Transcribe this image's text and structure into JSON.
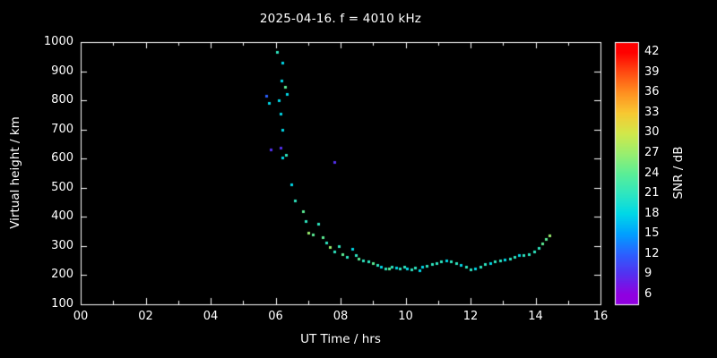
{
  "background": "#000000",
  "foreground": "#ffffff",
  "chart_data": {
    "type": "scatter",
    "title": "2025-04-16. f = 4010 kHz",
    "xlabel": "UT Time / hrs",
    "ylabel": "Virtual height / km",
    "xlim": [
      0,
      16
    ],
    "ylim": [
      100,
      1000
    ],
    "grid": false,
    "legend": "colorbar-right",
    "x_ticks": [
      {
        "v": 0,
        "label": "00"
      },
      {
        "v": 2,
        "label": "02"
      },
      {
        "v": 4,
        "label": "04"
      },
      {
        "v": 6,
        "label": "06"
      },
      {
        "v": 8,
        "label": "08"
      },
      {
        "v": 10,
        "label": "10"
      },
      {
        "v": 12,
        "label": "12"
      },
      {
        "v": 14,
        "label": "14"
      },
      {
        "v": 16,
        "label": "16"
      }
    ],
    "y_ticks": [
      {
        "v": 100,
        "label": "100"
      },
      {
        "v": 200,
        "label": "200"
      },
      {
        "v": 300,
        "label": "300"
      },
      {
        "v": 400,
        "label": "400"
      },
      {
        "v": 500,
        "label": "500"
      },
      {
        "v": 600,
        "label": "600"
      },
      {
        "v": 700,
        "label": "700"
      },
      {
        "v": 800,
        "label": "800"
      },
      {
        "v": 900,
        "label": "900"
      },
      {
        "v": 1000,
        "label": "1000"
      }
    ],
    "colorbar": {
      "label": "SNR / dB",
      "min": 6,
      "max": 42,
      "tick_step": 3,
      "ticks": [
        42,
        39,
        36,
        33,
        30,
        27,
        24,
        21,
        18,
        15,
        12,
        9,
        6
      ],
      "stops": [
        {
          "snr": 6,
          "color": "#9000e0"
        },
        {
          "snr": 9,
          "color": "#5530f0"
        },
        {
          "snr": 12,
          "color": "#2b60ff"
        },
        {
          "snr": 15,
          "color": "#00a0ff"
        },
        {
          "snr": 18,
          "color": "#00d8e8"
        },
        {
          "snr": 21,
          "color": "#2ee6c0"
        },
        {
          "snr": 24,
          "color": "#5cee96"
        },
        {
          "snr": 27,
          "color": "#9aee6e"
        },
        {
          "snr": 30,
          "color": "#d2e84a"
        },
        {
          "snr": 33,
          "color": "#f8c832"
        },
        {
          "snr": 36,
          "color": "#ff9020"
        },
        {
          "snr": 39,
          "color": "#ff4c12"
        },
        {
          "snr": 42,
          "color": "#ff0000"
        }
      ]
    },
    "points": [
      [
        5.7,
        815,
        12
      ],
      [
        5.78,
        790,
        18
      ],
      [
        6.05,
        965,
        21
      ],
      [
        6.22,
        930,
        18
      ],
      [
        6.18,
        868,
        18
      ],
      [
        6.3,
        845,
        24
      ],
      [
        6.1,
        800,
        18
      ],
      [
        6.35,
        822,
        18
      ],
      [
        6.15,
        755,
        18
      ],
      [
        6.22,
        700,
        18
      ],
      [
        5.85,
        632,
        9
      ],
      [
        6.15,
        638,
        9
      ],
      [
        6.22,
        605,
        18
      ],
      [
        6.32,
        612,
        21
      ],
      [
        7.8,
        588,
        9
      ],
      [
        6.48,
        512,
        18
      ],
      [
        6.6,
        455,
        21
      ],
      [
        6.85,
        420,
        24
      ],
      [
        6.92,
        386,
        21
      ],
      [
        7.02,
        345,
        27
      ],
      [
        7.15,
        340,
        24
      ],
      [
        7.3,
        376,
        21
      ],
      [
        7.45,
        330,
        24
      ],
      [
        7.56,
        312,
        21
      ],
      [
        7.66,
        296,
        27
      ],
      [
        7.8,
        282,
        21
      ],
      [
        7.95,
        300,
        21
      ],
      [
        8.05,
        272,
        24
      ],
      [
        8.2,
        264,
        21
      ],
      [
        8.36,
        290,
        18
      ],
      [
        8.46,
        270,
        21
      ],
      [
        8.56,
        256,
        24
      ],
      [
        8.7,
        250,
        21
      ],
      [
        8.85,
        246,
        21
      ],
      [
        9.0,
        240,
        24
      ],
      [
        9.12,
        236,
        21
      ],
      [
        9.25,
        230,
        18
      ],
      [
        9.38,
        224,
        21
      ],
      [
        9.5,
        222,
        24
      ],
      [
        9.58,
        230,
        21
      ],
      [
        9.7,
        226,
        18
      ],
      [
        9.82,
        222,
        21
      ],
      [
        9.95,
        228,
        21
      ],
      [
        10.05,
        224,
        18
      ],
      [
        10.18,
        220,
        21
      ],
      [
        10.3,
        226,
        21
      ],
      [
        10.42,
        218,
        18
      ],
      [
        10.52,
        228,
        18
      ],
      [
        10.65,
        232,
        21
      ],
      [
        10.8,
        238,
        21
      ],
      [
        10.95,
        242,
        21
      ],
      [
        11.1,
        248,
        21
      ],
      [
        11.25,
        252,
        18
      ],
      [
        11.4,
        246,
        21
      ],
      [
        11.55,
        240,
        21
      ],
      [
        11.7,
        234,
        18
      ],
      [
        11.85,
        228,
        21
      ],
      [
        12.0,
        220,
        21
      ],
      [
        12.15,
        224,
        18
      ],
      [
        12.3,
        230,
        21
      ],
      [
        12.45,
        238,
        21
      ],
      [
        12.6,
        242,
        18
      ],
      [
        12.75,
        248,
        21
      ],
      [
        12.9,
        252,
        21
      ],
      [
        13.05,
        255,
        18
      ],
      [
        13.2,
        258,
        21
      ],
      [
        13.35,
        262,
        21
      ],
      [
        13.5,
        268,
        18
      ],
      [
        13.62,
        270,
        21
      ],
      [
        13.78,
        272,
        21
      ],
      [
        13.95,
        280,
        21
      ],
      [
        14.1,
        295,
        21
      ],
      [
        14.22,
        310,
        24
      ],
      [
        14.32,
        325,
        24
      ],
      [
        14.42,
        338,
        27
      ]
    ]
  }
}
